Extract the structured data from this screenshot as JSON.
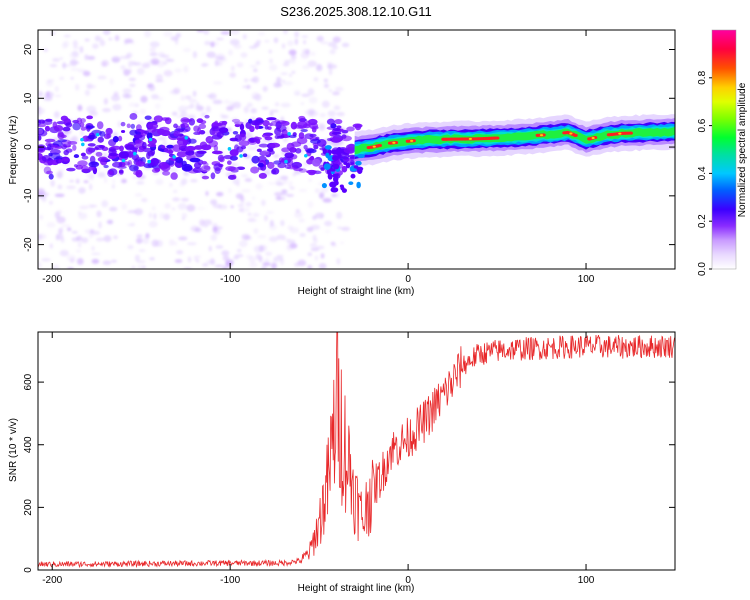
{
  "title": "S236.2025.308.12.10.G11",
  "colors": {
    "snr_line": "#e8282a",
    "colormap": [
      "#ffffff",
      "#e9d9ff",
      "#c99bff",
      "#9a3cff",
      "#6f00ff",
      "#3a00ff",
      "#0030ff",
      "#0090ff",
      "#00e0e0",
      "#00e070",
      "#40ff00",
      "#c0ff00",
      "#ffff00",
      "#ffb000",
      "#ff3000",
      "#ff0060",
      "#ff00b0"
    ]
  },
  "chart_data": [
    {
      "type": "heatmap",
      "title": "S236.2025.308.12.10.G11",
      "xlabel": "Height of straight line (km)",
      "ylabel": "Frequency (Hz)",
      "xlim": [
        -208,
        150
      ],
      "ylim": [
        -25,
        24
      ],
      "xticks": [
        -200,
        -100,
        0,
        100
      ],
      "xtick_labels": [
        "-200",
        "-100",
        "0",
        "100"
      ],
      "yticks": [
        -20,
        -10,
        0,
        10,
        20
      ],
      "ytick_labels": [
        "-20",
        "-10",
        "0",
        "10",
        "20"
      ],
      "colorbar": {
        "label": "Normalized spectral amplitude",
        "range": [
          0.0,
          1.0
        ],
        "ticks": [
          0.0,
          0.2,
          0.4,
          0.6,
          0.8
        ],
        "tick_labels": [
          "0.0",
          "0.2",
          "0.4",
          "0.6",
          "0.8"
        ]
      },
      "description_of_signal": "Noisy scattered low-amplitude energy below ~-30 km; a single coherent tone near 1-3 Hz (amplitude ~0.9-1.0) above ~-30 km",
      "tone_track": {
        "x": [
          -30,
          -20,
          -10,
          0,
          10,
          20,
          40,
          60,
          80,
          90,
          100,
          110,
          120,
          150
        ],
        "y": [
          -0.5,
          0.0,
          0.8,
          1.2,
          1.5,
          1.6,
          1.7,
          2.0,
          2.6,
          3.0,
          1.5,
          2.4,
          2.8,
          3.2
        ]
      }
    },
    {
      "type": "line",
      "xlabel": "Height of straight line (km)",
      "ylabel": "SNR (10 * v/v)",
      "xlim": [
        -208,
        150
      ],
      "ylim": [
        0,
        760
      ],
      "xticks": [
        -200,
        -100,
        0,
        100
      ],
      "xtick_labels": [
        "-200",
        "-100",
        "0",
        "100"
      ],
      "yticks": [
        0,
        200,
        400,
        600
      ],
      "ytick_labels": [
        "0",
        "200",
        "400",
        "600"
      ],
      "series": [
        {
          "name": "SNR",
          "x": [
            -208,
            -150,
            -100,
            -70,
            -60,
            -55,
            -50,
            -45,
            -42,
            -40,
            -38,
            -35,
            -32,
            -30,
            -28,
            -25,
            -22,
            -20,
            -15,
            -10,
            -5,
            0,
            5,
            10,
            15,
            20,
            25,
            30,
            40,
            50,
            60,
            80,
            100,
            120,
            150
          ],
          "y": [
            18,
            20,
            22,
            22,
            30,
            60,
            150,
            280,
            420,
            560,
            470,
            380,
            300,
            250,
            200,
            160,
            240,
            260,
            300,
            380,
            400,
            420,
            450,
            480,
            520,
            560,
            600,
            650,
            690,
            700,
            705,
            710,
            715,
            712,
            715
          ]
        }
      ]
    }
  ]
}
